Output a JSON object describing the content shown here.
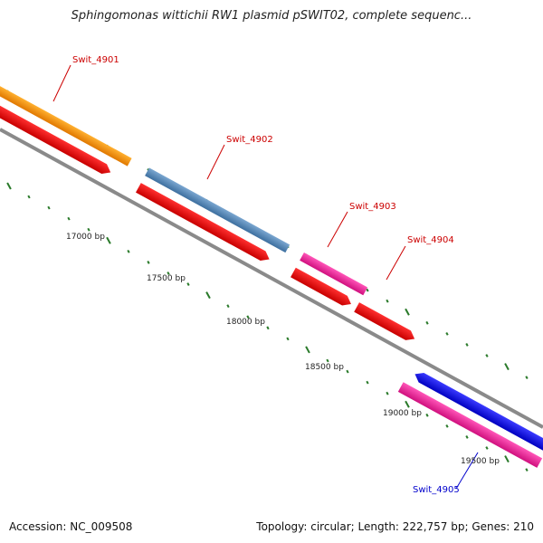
{
  "title": "Sphingomonas wittichii RW1 plasmid pSWIT02, complete sequenc...",
  "footer": {
    "accession": "Accession: NC_009508",
    "summary": "Topology: circular; Length: 222,757 bp; Genes: 210"
  },
  "colors": {
    "backbone": "#8a8a8a",
    "tick": "#2a7a2a",
    "label_red": "#cc0000",
    "label_blue": "#0000cc"
  },
  "scale_labels": [
    {
      "bp": 17000,
      "text": "17000 bp"
    },
    {
      "bp": 17500,
      "text": "17500 bp"
    },
    {
      "bp": 18000,
      "text": "18000 bp"
    },
    {
      "bp": 18500,
      "text": "18500 bp"
    },
    {
      "bp": 19000,
      "text": "19000 bp"
    },
    {
      "bp": 19500,
      "text": "19500 bp"
    }
  ],
  "genes": [
    {
      "id": "Swit_4901",
      "label_color": "#cc0000",
      "side": "top"
    },
    {
      "id": "Swit_4902",
      "label_color": "#cc0000",
      "side": "top"
    },
    {
      "id": "Swit_4903",
      "label_color": "#cc0000",
      "side": "top"
    },
    {
      "id": "Swit_4904",
      "label_color": "#cc0000",
      "side": "top"
    },
    {
      "id": "Swit_4905",
      "label_color": "#0000cc",
      "side": "bottom"
    }
  ]
}
